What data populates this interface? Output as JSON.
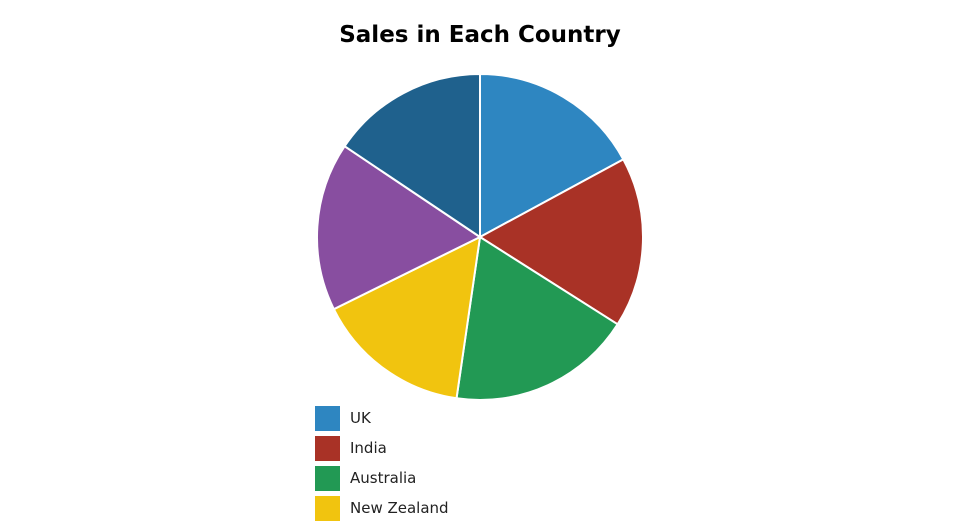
{
  "chart_data": {
    "type": "pie",
    "title": "Sales in Each Country",
    "slices": [
      {
        "name": "UK",
        "value": 17.1,
        "color": "#2E86C1"
      },
      {
        "name": "India",
        "value": 16.9,
        "color": "#A93226"
      },
      {
        "name": "Australia",
        "value": 18.3,
        "color": "#229954"
      },
      {
        "name": "New Zealand",
        "value": 15.4,
        "color": "#F1C40F"
      },
      {
        "name": "",
        "value": 16.7,
        "color": "#884EA0"
      },
      {
        "name": "",
        "value": 15.6,
        "color": "#1F618D"
      }
    ],
    "start_angle": "top",
    "direction": "clockwise",
    "legend_position": "bottom-left"
  }
}
